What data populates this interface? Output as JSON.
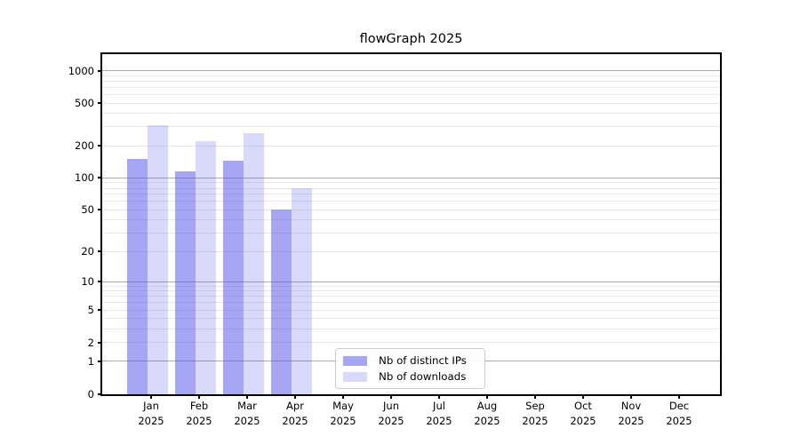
{
  "title": "flowGraph 2025",
  "chart_data": {
    "type": "bar",
    "title": "flowGraph 2025",
    "x_categories": [
      "Jan",
      "Feb",
      "Mar",
      "Apr",
      "May",
      "Jun",
      "Jul",
      "Aug",
      "Sep",
      "Oct",
      "Nov",
      "Dec"
    ],
    "x_year": "2025",
    "xlabel": "",
    "ylabel": "",
    "y_scale": "log(value+1)",
    "y_ticks": [
      0,
      1,
      2,
      5,
      10,
      20,
      50,
      100,
      200,
      500,
      1000
    ],
    "y_top_value": 1424,
    "grid": "horizontal, major lines at powers of 10, faint minor lines at 2-9 per decade",
    "legend_position": "bottom center-left inside plot",
    "series": [
      {
        "name": "Nb of distinct IPs",
        "color": "rgba(80,80,235,0.51)",
        "values": [
          150,
          115,
          145,
          50,
          null,
          null,
          null,
          null,
          null,
          null,
          null,
          null
        ]
      },
      {
        "name": "Nb of downloads",
        "color": "rgba(80,80,235,0.22)",
        "values": [
          310,
          220,
          260,
          80,
          null,
          null,
          null,
          null,
          null,
          null,
          null,
          null
        ]
      }
    ]
  },
  "colors": {
    "background": "#ffffff",
    "axis": "#000000",
    "major_grid": "#ababab",
    "minor_grid": "#e8e8e8",
    "legend_border": "#cccccc",
    "text": "#000000"
  }
}
